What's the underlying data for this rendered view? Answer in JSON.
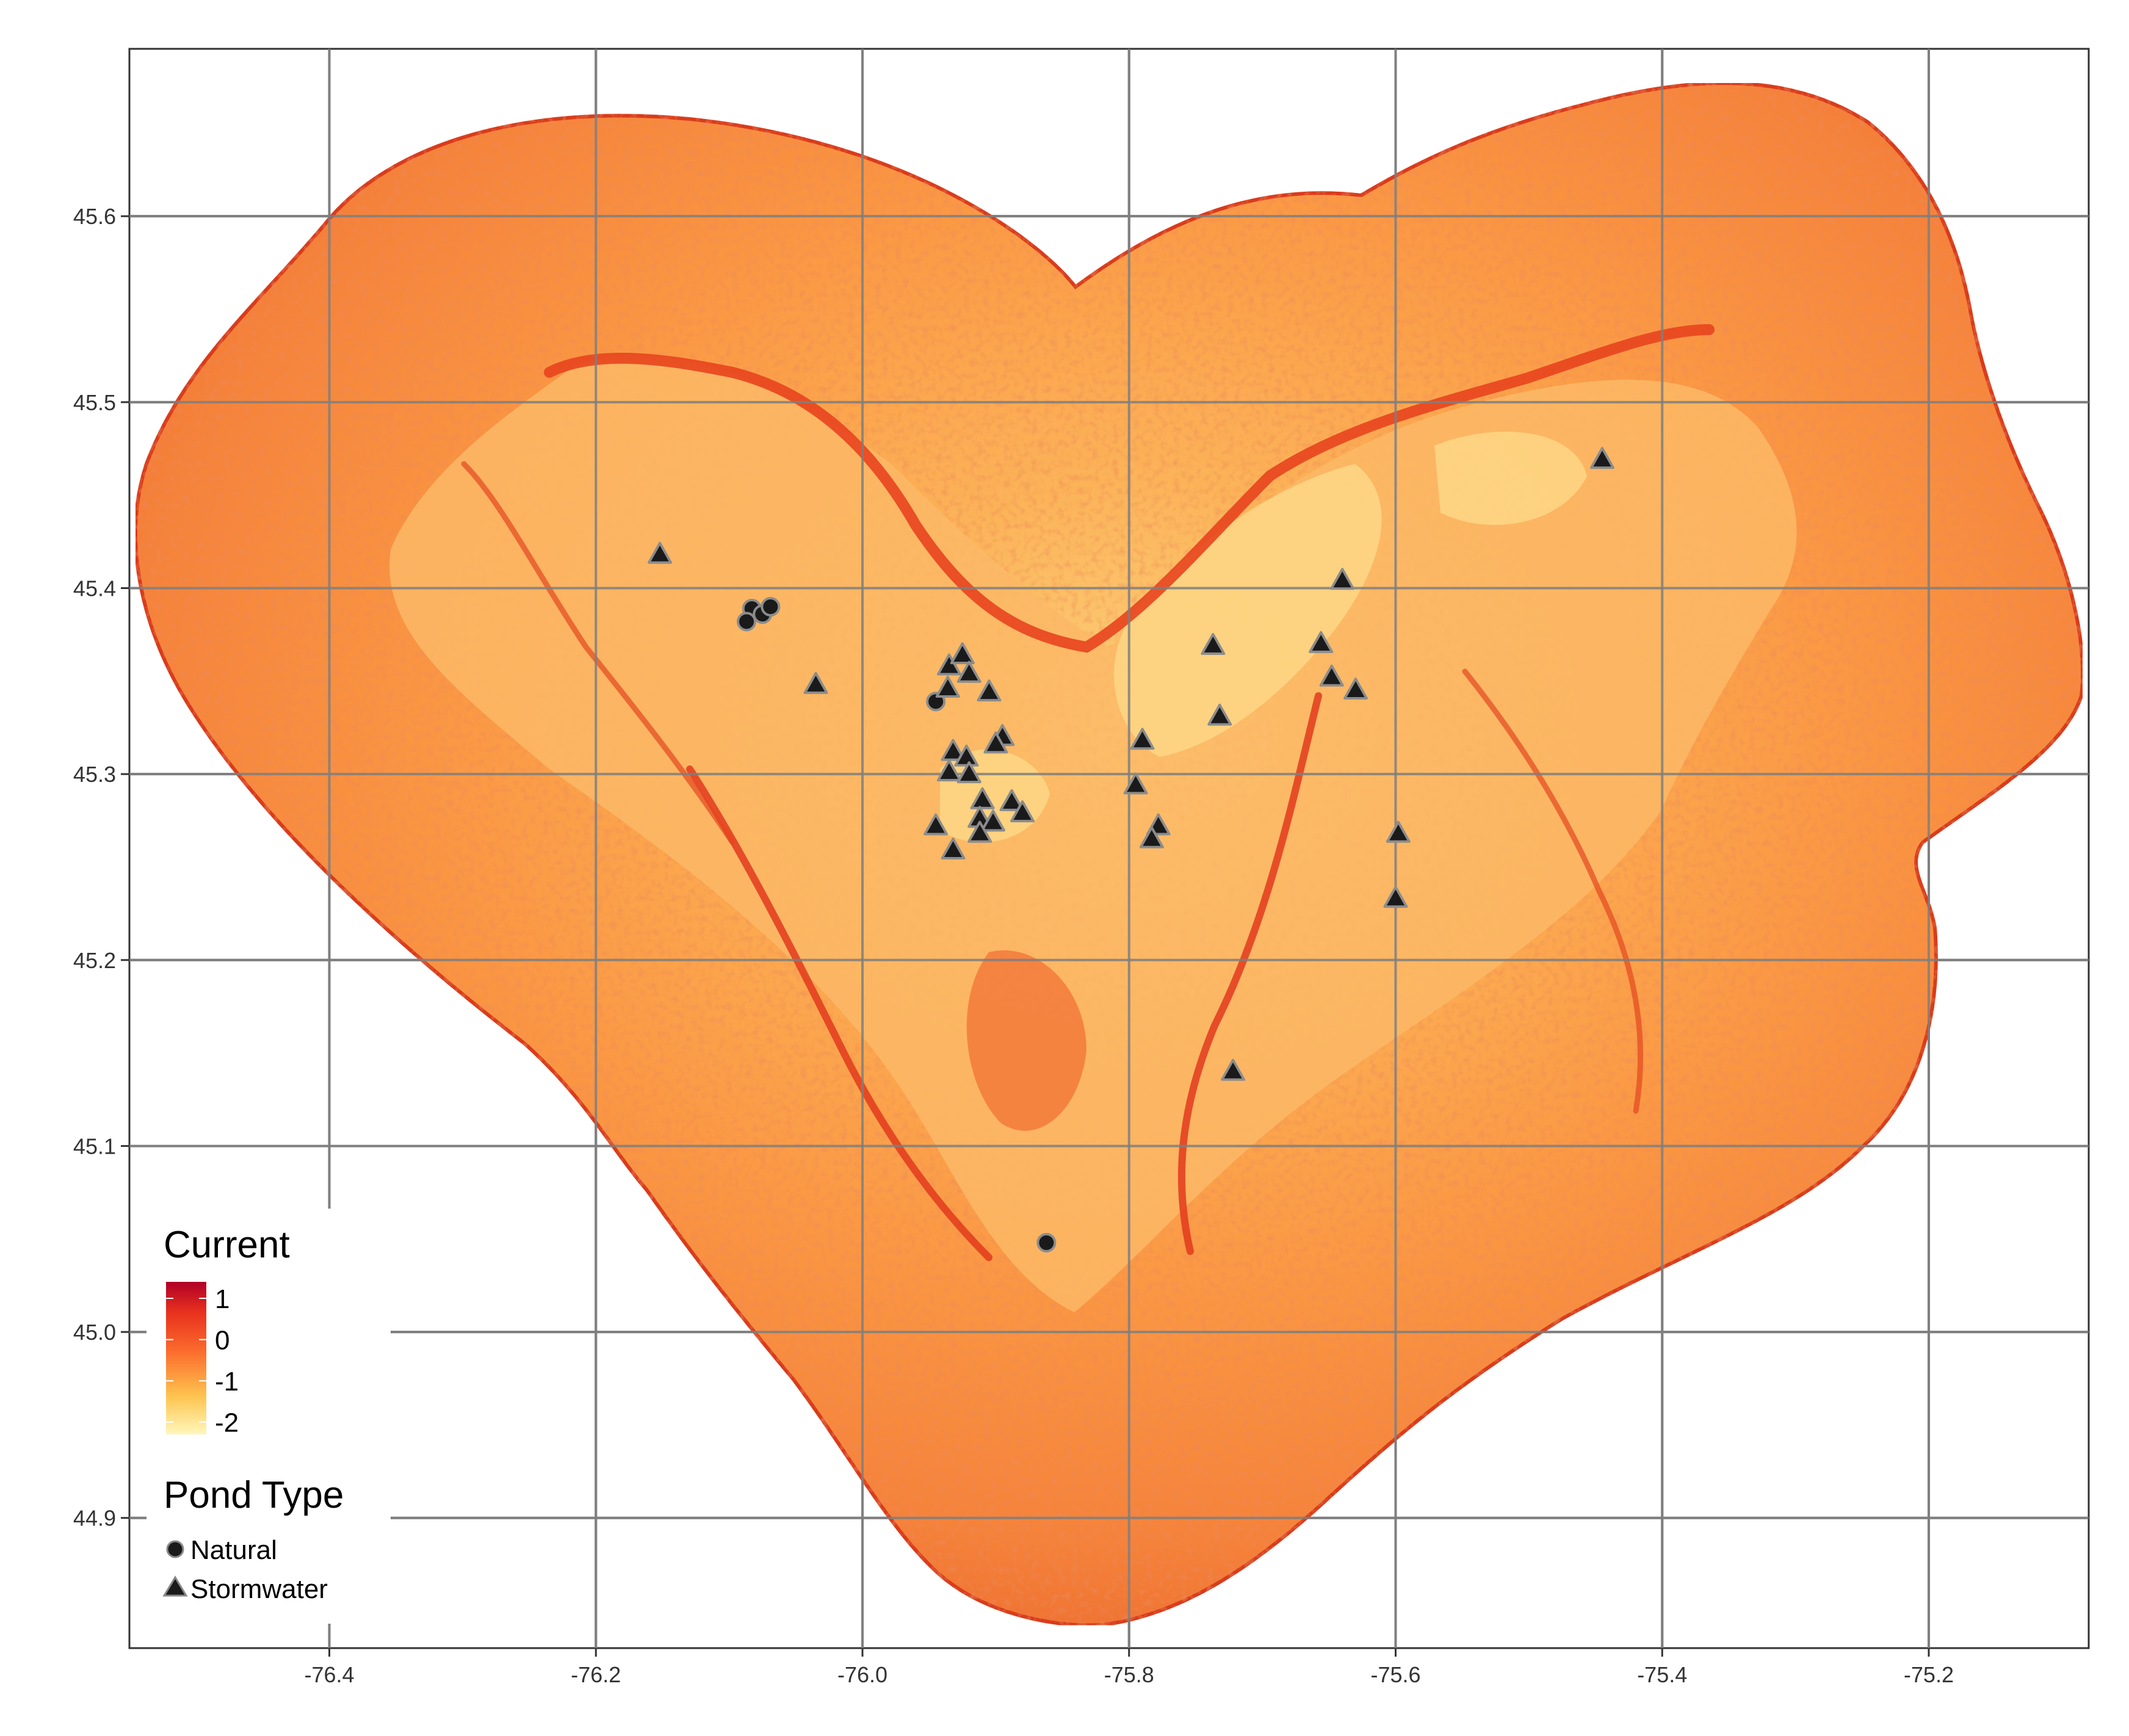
{
  "chart_data": {
    "type": "map",
    "title": "",
    "xlabel": "",
    "ylabel": "",
    "xlim": [
      -76.55,
      -75.08
    ],
    "ylim": [
      44.83,
      45.69
    ],
    "x_ticks": [
      "-76.4",
      "-76.2",
      "-76.0",
      "-75.8",
      "-75.6",
      "-75.4",
      "-75.2"
    ],
    "x_tick_values": [
      -76.4,
      -76.2,
      -76.0,
      -75.8,
      -75.6,
      -75.4,
      -75.2
    ],
    "y_ticks": [
      "44.9",
      "45.0",
      "45.1",
      "45.2",
      "45.3",
      "45.4",
      "45.5",
      "45.6"
    ],
    "y_tick_values": [
      44.9,
      45.0,
      45.1,
      45.2,
      45.3,
      45.4,
      45.5,
      45.6
    ],
    "grid": true,
    "raster": {
      "name": "Current",
      "scale_labels": [
        "1",
        "0",
        "-1",
        "-2"
      ],
      "scale_values": [
        1,
        0,
        -1,
        -2
      ],
      "range": [
        -2.3,
        1.4
      ],
      "colors": [
        "#fff7bc",
        "#fec44f",
        "#fb6a2c",
        "#e8311e",
        "#b10026"
      ]
    },
    "legend": {
      "placement": "bottom-left",
      "current_title": "Current",
      "pond_title": "Pond Type",
      "pond_types": [
        "Natural",
        "Stormwater"
      ]
    },
    "series": [
      {
        "name": "Natural",
        "marker": "circle",
        "points": [
          [
            -76.083,
            45.389
          ],
          [
            -76.075,
            45.386
          ],
          [
            -76.069,
            45.39
          ],
          [
            -76.087,
            45.382
          ],
          [
            -75.945,
            45.339
          ],
          [
            -75.862,
            45.048
          ]
        ]
      },
      {
        "name": "Stormwater",
        "marker": "triangle",
        "points": [
          [
            -76.152,
            45.418
          ],
          [
            -76.035,
            45.348
          ],
          [
            -75.935,
            45.358
          ],
          [
            -75.925,
            45.364
          ],
          [
            -75.92,
            45.354
          ],
          [
            -75.936,
            45.346
          ],
          [
            -75.905,
            45.344
          ],
          [
            -75.895,
            45.32
          ],
          [
            -75.9,
            45.316
          ],
          [
            -75.932,
            45.312
          ],
          [
            -75.922,
            45.309
          ],
          [
            -75.935,
            45.301
          ],
          [
            -75.92,
            45.3
          ],
          [
            -75.91,
            45.286
          ],
          [
            -75.888,
            45.285
          ],
          [
            -75.88,
            45.279
          ],
          [
            -75.912,
            45.276
          ],
          [
            -75.902,
            45.274
          ],
          [
            -75.945,
            45.272
          ],
          [
            -75.912,
            45.268
          ],
          [
            -75.932,
            45.259
          ],
          [
            -75.79,
            45.318
          ],
          [
            -75.795,
            45.294
          ],
          [
            -75.778,
            45.272
          ],
          [
            -75.783,
            45.265
          ],
          [
            -75.737,
            45.369
          ],
          [
            -75.732,
            45.331
          ],
          [
            -75.656,
            45.37
          ],
          [
            -75.648,
            45.352
          ],
          [
            -75.64,
            45.404
          ],
          [
            -75.63,
            45.345
          ],
          [
            -75.598,
            45.268
          ],
          [
            -75.6,
            45.233
          ],
          [
            -75.445,
            45.469
          ],
          [
            -75.722,
            45.14
          ]
        ]
      }
    ]
  }
}
